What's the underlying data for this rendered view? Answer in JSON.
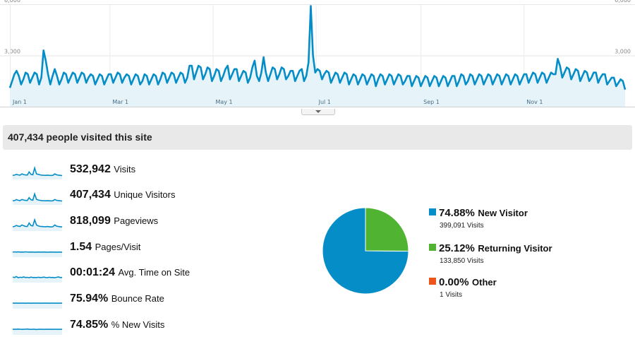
{
  "chart_data": {
    "type": "area",
    "title": "",
    "y_ticks": [
      "6,000",
      "3,000"
    ],
    "ylim": [
      0,
      6000
    ],
    "x_tick_labels": [
      "Jan 1",
      "Mar 1",
      "May 1",
      "Jul 1",
      "Sep 1",
      "Nov 1"
    ],
    "series": [
      {
        "values": [
          1100,
          1500,
          1900,
          2100,
          1800,
          1300,
          1600,
          2000,
          1900,
          1400,
          1700,
          2000,
          1900,
          1300,
          1700,
          3300,
          2700,
          1900,
          1300,
          1800,
          2200,
          1800,
          1300,
          1600,
          2000,
          1900,
          1400,
          1700,
          2000,
          1900,
          1400,
          1700,
          2000,
          1900,
          1400,
          1700,
          1900,
          1800,
          1300,
          1600,
          1900,
          1800,
          1300,
          1600,
          1900,
          1900,
          1400,
          1700,
          2000,
          1900,
          1400,
          1700,
          1900,
          1800,
          1300,
          1600,
          1900,
          1800,
          1300,
          1500,
          1900,
          1800,
          1300,
          1600,
          1900,
          1800,
          1300,
          1600,
          2000,
          1900,
          1400,
          1700,
          2000,
          1900,
          1400,
          1700,
          2000,
          1900,
          1400,
          1700,
          2400,
          2400,
          1600,
          2000,
          2400,
          2300,
          1600,
          1900,
          2300,
          2200,
          1500,
          1800,
          2200,
          2100,
          1500,
          1800,
          2200,
          2400,
          1600,
          1900,
          2200,
          2200,
          1500,
          1800,
          2100,
          2000,
          1400,
          1700,
          2300,
          2700,
          1800,
          1500,
          2000,
          2900,
          2000,
          1500,
          1900,
          2300,
          2200,
          1600,
          1900,
          2300,
          2200,
          1600,
          1800,
          2100,
          2100,
          1500,
          1800,
          2100,
          2200,
          1500,
          1800,
          2600,
          5900,
          3000,
          2000,
          2200,
          2100,
          1600,
          1900,
          2100,
          2000,
          1400,
          1700,
          2000,
          1900,
          1400,
          1700,
          2000,
          1900,
          1300,
          1600,
          1900,
          1800,
          1300,
          1600,
          1900,
          1800,
          1300,
          1600,
          1900,
          1800,
          1200,
          1600,
          1900,
          1800,
          1300,
          1600,
          1900,
          1800,
          1300,
          1600,
          1900,
          1800,
          1300,
          1500,
          1800,
          1800,
          1200,
          1500,
          1800,
          1700,
          1200,
          1500,
          1800,
          1700,
          1200,
          1500,
          1800,
          1700,
          1200,
          1500,
          1800,
          1700,
          1200,
          1500,
          1800,
          1800,
          1200,
          1500,
          1900,
          1800,
          1300,
          1500,
          1900,
          1800,
          1300,
          1600,
          1900,
          1800,
          1300,
          1600,
          1900,
          1800,
          1300,
          1600,
          1900,
          1800,
          1300,
          1600,
          1900,
          1800,
          1300,
          1600,
          1900,
          1800,
          1300,
          1600,
          1900,
          1900,
          1400,
          1700,
          2000,
          1900,
          1400,
          1700,
          2000,
          1900,
          1400,
          1700,
          2000,
          1900,
          1900,
          2800,
          2400,
          1700,
          2000,
          2300,
          2200,
          1600,
          1900,
          2200,
          2100,
          1500,
          1800,
          2100,
          2000,
          1500,
          1700,
          2000,
          2000,
          1400,
          1700,
          1900,
          1900,
          1300,
          1500,
          1700,
          1700,
          1200,
          1400,
          1600,
          1500,
          1000
        ]
      }
    ],
    "line_color": "#058dc7",
    "fill_color": "#e6f4fa"
  },
  "summary": {
    "title": "407,434 people visited this site"
  },
  "metrics": [
    {
      "value": "532,942",
      "label": "Visits",
      "spark": [
        0.2,
        0.22,
        0.3,
        0.25,
        0.22,
        0.35,
        0.28,
        0.24,
        0.23,
        0.55,
        0.3,
        0.26,
        0.95,
        0.35,
        0.3,
        0.25,
        0.22,
        0.21,
        0.2,
        0.22,
        0.2,
        0.19,
        0.2,
        0.35,
        0.26,
        0.22,
        0.2,
        0.18
      ]
    },
    {
      "value": "407,434",
      "label": "Unique Visitors",
      "spark": [
        0.2,
        0.22,
        0.32,
        0.25,
        0.22,
        0.33,
        0.28,
        0.24,
        0.23,
        0.52,
        0.3,
        0.26,
        0.9,
        0.35,
        0.28,
        0.24,
        0.22,
        0.21,
        0.2,
        0.21,
        0.2,
        0.19,
        0.2,
        0.33,
        0.25,
        0.22,
        0.2,
        0.18
      ]
    },
    {
      "value": "818,099",
      "label": "Pageviews",
      "spark": [
        0.22,
        0.25,
        0.35,
        0.28,
        0.25,
        0.4,
        0.32,
        0.26,
        0.25,
        0.6,
        0.34,
        0.3,
        0.92,
        0.4,
        0.3,
        0.26,
        0.24,
        0.23,
        0.22,
        0.24,
        0.22,
        0.2,
        0.22,
        0.4,
        0.28,
        0.24,
        0.22,
        0.2
      ]
    },
    {
      "value": "1.54",
      "label": "Pages/Visit",
      "spark": [
        0.3,
        0.32,
        0.3,
        0.33,
        0.3,
        0.31,
        0.3,
        0.32,
        0.31,
        0.3,
        0.31,
        0.3,
        0.29,
        0.3,
        0.31,
        0.3,
        0.3,
        0.31,
        0.3,
        0.29,
        0.3,
        0.31,
        0.3,
        0.3,
        0.29,
        0.3,
        0.3,
        0.29
      ]
    },
    {
      "value": "00:01:24",
      "label": "Avg. Time on Site",
      "spark": [
        0.35,
        0.3,
        0.4,
        0.28,
        0.33,
        0.3,
        0.36,
        0.3,
        0.32,
        0.28,
        0.34,
        0.3,
        0.31,
        0.29,
        0.33,
        0.3,
        0.31,
        0.34,
        0.3,
        0.29,
        0.33,
        0.3,
        0.31,
        0.28,
        0.32,
        0.36,
        0.3,
        0.31
      ]
    },
    {
      "value": "75.94%",
      "label": "Bounce Rate",
      "spark": [
        0.35,
        0.36,
        0.35,
        0.34,
        0.36,
        0.35,
        0.35,
        0.34,
        0.36,
        0.35,
        0.34,
        0.35,
        0.36,
        0.35,
        0.35,
        0.34,
        0.35,
        0.36,
        0.35,
        0.35,
        0.34,
        0.35,
        0.36,
        0.35,
        0.34,
        0.35,
        0.35,
        0.35
      ]
    },
    {
      "value": "74.85%",
      "label": "% New Visits",
      "spark": [
        0.35,
        0.36,
        0.35,
        0.37,
        0.36,
        0.34,
        0.35,
        0.36,
        0.38,
        0.35,
        0.34,
        0.36,
        0.35,
        0.33,
        0.35,
        0.36,
        0.35,
        0.34,
        0.36,
        0.35,
        0.35,
        0.34,
        0.35,
        0.36,
        0.35,
        0.34,
        0.35,
        0.35
      ]
    }
  ],
  "pie": {
    "slices": [
      {
        "percent": "74.88%",
        "name": "New Visitor",
        "visits": "399,091 Visits",
        "value": 74.88,
        "color": "#058dc7"
      },
      {
        "percent": "25.12%",
        "name": "Returning Visitor",
        "visits": "133,850 Visits",
        "value": 25.12,
        "color": "#50b432"
      },
      {
        "percent": "0.00%",
        "name": "Other",
        "visits": "1 Visits",
        "value": 0.0,
        "color": "#ed561b"
      }
    ]
  },
  "colors": {
    "spark": "#058dc7",
    "spark_fill": "#e6f4fa",
    "summary_bg": "#e9e9e9"
  }
}
